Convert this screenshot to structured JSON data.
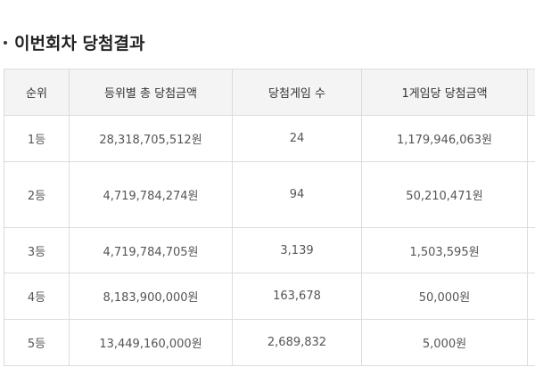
{
  "title": "이번회차 당첨결과",
  "table": {
    "headers": [
      "순위",
      "등위별 총 당첨금액",
      "당첨게임 수",
      "1게임당 당첨금액",
      ""
    ],
    "rows": [
      {
        "rank": "1등",
        "total": "28,318,705,512원",
        "games": "24",
        "per_game": "1,179,946,063원"
      },
      {
        "rank": "2등",
        "total": "4,719,784,274원",
        "games": "94",
        "per_game": "50,210,471원"
      },
      {
        "rank": "3등",
        "total": "4,719,784,705원",
        "games": "3,139",
        "per_game": "1,503,595원"
      },
      {
        "rank": "4등",
        "total": "8,183,900,000원",
        "games": "163,678",
        "per_game": "50,000원"
      },
      {
        "rank": "5등",
        "total": "13,449,160,000원",
        "games": "2,689,832",
        "per_game": "5,000원"
      }
    ]
  }
}
